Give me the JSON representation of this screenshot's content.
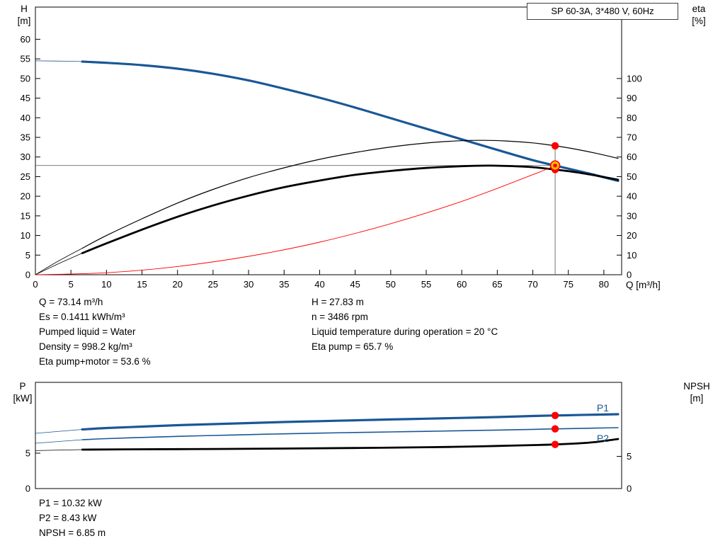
{
  "colors": {
    "curve_blue": "#1a5796",
    "curve_black": "#000000",
    "curve_red": "#ff0000",
    "marker_yellow": "#ffc000",
    "ref_line": "#555555"
  },
  "info_top": {
    "left": [
      "Q = 73.14 m³/h",
      "Es = 0.1411 kWh/m³",
      "Pumped liquid = Water",
      "Density = 998.2 kg/m³",
      "Eta pump+motor = 53.6 %"
    ],
    "right": [
      "H = 27.83 m",
      "n = 3486 rpm",
      "Liquid temperature during operation = 20 °C",
      "Eta pump = 65.7 %"
    ]
  },
  "info_bottom": [
    "P1 = 10.32 kW",
    "P2 = 8.43 kW",
    "NPSH = 6.85 m"
  ],
  "chart_data": [
    {
      "type": "line",
      "title": "SP 60-3A, 3*480 V, 60Hz",
      "x_label": "Q [m³/h]",
      "x_range": [
        0,
        82.5
      ],
      "x_ticks": [
        0,
        5,
        10,
        15,
        20,
        25,
        30,
        35,
        40,
        45,
        50,
        55,
        60,
        65,
        70,
        75,
        80
      ],
      "y_left": {
        "label": "H",
        "unit": "[m]",
        "range": [
          0,
          68.2
        ],
        "ticks": [
          0,
          5,
          10,
          15,
          20,
          25,
          30,
          35,
          40,
          45,
          50,
          55,
          60
        ]
      },
      "y_right": {
        "label": "eta",
        "unit": "[%]",
        "range": [
          0,
          136.4
        ],
        "ticks": [
          0,
          10,
          20,
          30,
          40,
          50,
          60,
          70,
          80,
          90,
          100
        ]
      },
      "duty": {
        "q": 73.14,
        "h": 27.83,
        "eta_top": 65.7
      },
      "series": [
        {
          "name": "head-curve",
          "axis": "left",
          "color": "curve_blue",
          "width": 3.2,
          "thin_until": 6.6,
          "points": [
            [
              0,
              54.5
            ],
            [
              5,
              54.4
            ],
            [
              6.6,
              54.3
            ],
            [
              10,
              54.0
            ],
            [
              15,
              53.4
            ],
            [
              20,
              52.5
            ],
            [
              25,
              51.2
            ],
            [
              30,
              49.5
            ],
            [
              35,
              47.4
            ],
            [
              40,
              45.1
            ],
            [
              45,
              42.6
            ],
            [
              50,
              39.9
            ],
            [
              55,
              37.2
            ],
            [
              60,
              34.5
            ],
            [
              65,
              31.8
            ],
            [
              70,
              29.2
            ],
            [
              73.14,
              27.83
            ],
            [
              76,
              26.6
            ],
            [
              79,
              25.3
            ],
            [
              82,
              23.9
            ]
          ]
        },
        {
          "name": "eta-pump-curve",
          "axis": "right",
          "color": "curve_black",
          "width": 1.2,
          "thin_until": 6.6,
          "points": [
            [
              0,
              0
            ],
            [
              3,
              6.5
            ],
            [
              6.6,
              13.5
            ],
            [
              10,
              20
            ],
            [
              15,
              28.5
            ],
            [
              20,
              36.5
            ],
            [
              25,
              43.5
            ],
            [
              30,
              49.5
            ],
            [
              35,
              54.5
            ],
            [
              40,
              58.8
            ],
            [
              45,
              62.3
            ],
            [
              50,
              65.1
            ],
            [
              55,
              67.1
            ],
            [
              60,
              68.3
            ],
            [
              63,
              68.5
            ],
            [
              66,
              68.2
            ],
            [
              70,
              67.2
            ],
            [
              73.14,
              65.7
            ],
            [
              76,
              64
            ],
            [
              79,
              61.8
            ],
            [
              82,
              59.3
            ]
          ]
        },
        {
          "name": "eta-pump-motor-curve",
          "axis": "right",
          "color": "curve_black",
          "width": 2.8,
          "thin_until": 6.6,
          "points": [
            [
              0,
              0
            ],
            [
              3,
              5.2
            ],
            [
              6.6,
              11
            ],
            [
              10,
              16
            ],
            [
              15,
              23
            ],
            [
              20,
              29.5
            ],
            [
              25,
              35.3
            ],
            [
              30,
              40.3
            ],
            [
              35,
              44.6
            ],
            [
              40,
              48
            ],
            [
              45,
              50.9
            ],
            [
              50,
              52.9
            ],
            [
              55,
              54.4
            ],
            [
              60,
              55.3
            ],
            [
              64,
              55.6
            ],
            [
              68,
              55.2
            ],
            [
              70,
              54.8
            ],
            [
              73.14,
              53.6
            ],
            [
              76,
              52.3
            ],
            [
              79,
              50.5
            ],
            [
              82,
              48.4
            ]
          ]
        },
        {
          "name": "system-curve",
          "axis": "left",
          "color": "curve_red",
          "width": 0.9,
          "points": [
            [
              0,
              0
            ],
            [
              10,
              0.5
            ],
            [
              20,
              2.1
            ],
            [
              30,
              4.7
            ],
            [
              40,
              8.3
            ],
            [
              50,
              13.0
            ],
            [
              60,
              18.7
            ],
            [
              70,
              25.5
            ],
            [
              73.14,
              27.83
            ]
          ]
        }
      ],
      "labels": [],
      "markers": [
        {
          "name": "eta-pump-point",
          "q": 73.14,
          "value": 65.7,
          "axis": "right",
          "style": "dot"
        },
        {
          "name": "eta-pump-motor-point",
          "q": 73.14,
          "value": 53.6,
          "axis": "right",
          "style": "dot"
        },
        {
          "name": "duty-point",
          "q": 73.14,
          "value": 27.83,
          "axis": "left",
          "style": "duty"
        }
      ]
    },
    {
      "type": "line",
      "title": "",
      "x_label": "",
      "x_range": [
        0,
        82.5
      ],
      "x_ticks": [],
      "y_left": {
        "label": "P",
        "unit": "[kW]",
        "range": [
          0,
          15
        ],
        "ticks": [
          0,
          5
        ]
      },
      "y_right": {
        "label": "NPSH",
        "unit": "[m]",
        "range": [
          0,
          16.5
        ],
        "ticks": [
          0,
          5
        ]
      },
      "series": [
        {
          "name": "p1-curve",
          "axis": "left",
          "color": "curve_blue",
          "width": 3.2,
          "thin_until": 6.6,
          "points": [
            [
              0,
              7.8
            ],
            [
              6.6,
              8.35
            ],
            [
              10,
              8.55
            ],
            [
              15,
              8.75
            ],
            [
              20,
              8.95
            ],
            [
              25,
              9.1
            ],
            [
              30,
              9.25
            ],
            [
              35,
              9.4
            ],
            [
              40,
              9.52
            ],
            [
              45,
              9.64
            ],
            [
              50,
              9.76
            ],
            [
              55,
              9.87
            ],
            [
              60,
              9.98
            ],
            [
              65,
              10.1
            ],
            [
              70,
              10.25
            ],
            [
              73.14,
              10.32
            ],
            [
              76,
              10.38
            ],
            [
              79,
              10.44
            ],
            [
              82,
              10.5
            ]
          ]
        },
        {
          "name": "p2-curve",
          "axis": "left",
          "color": "curve_blue",
          "width": 1.6,
          "thin_until": 6.6,
          "points": [
            [
              0,
              6.4
            ],
            [
              6.6,
              6.9
            ],
            [
              10,
              7.05
            ],
            [
              15,
              7.22
            ],
            [
              20,
              7.37
            ],
            [
              25,
              7.5
            ],
            [
              30,
              7.62
            ],
            [
              35,
              7.73
            ],
            [
              40,
              7.83
            ],
            [
              45,
              7.92
            ],
            [
              50,
              8.0
            ],
            [
              55,
              8.08
            ],
            [
              60,
              8.17
            ],
            [
              65,
              8.26
            ],
            [
              70,
              8.36
            ],
            [
              73.14,
              8.43
            ],
            [
              76,
              8.48
            ],
            [
              79,
              8.54
            ],
            [
              82,
              8.6
            ]
          ]
        },
        {
          "name": "npsh-curve",
          "axis": "right",
          "color": "curve_black",
          "width": 2.8,
          "thin_until": 6.6,
          "points": [
            [
              0,
              5.9
            ],
            [
              6.6,
              6.05
            ],
            [
              15,
              6.1
            ],
            [
              25,
              6.15
            ],
            [
              35,
              6.22
            ],
            [
              45,
              6.3
            ],
            [
              55,
              6.42
            ],
            [
              60,
              6.5
            ],
            [
              65,
              6.62
            ],
            [
              70,
              6.75
            ],
            [
              73.14,
              6.85
            ],
            [
              76,
              7.0
            ],
            [
              79,
              7.25
            ],
            [
              82,
              7.7
            ]
          ]
        }
      ],
      "labels": [
        {
          "text": "P1",
          "q": 79,
          "value": 10.9,
          "axis": "left",
          "color": "curve_blue"
        },
        {
          "text": "P2",
          "q": 79,
          "value": 6.6,
          "axis": "left",
          "color": "curve_blue"
        }
      ],
      "markers": [
        {
          "name": "p1-point",
          "q": 73.14,
          "value": 10.32,
          "axis": "left",
          "style": "dot"
        },
        {
          "name": "p2-point",
          "q": 73.14,
          "value": 8.43,
          "axis": "left",
          "style": "dot"
        },
        {
          "name": "npsh-point",
          "q": 73.14,
          "value": 6.85,
          "axis": "right",
          "style": "dot"
        }
      ]
    }
  ]
}
